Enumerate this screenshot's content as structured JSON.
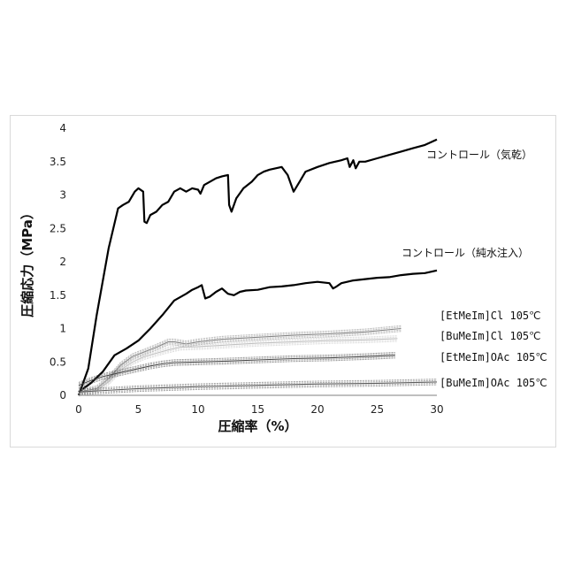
{
  "chart_data": {
    "type": "line",
    "xlabel": "圧縮率（%）",
    "ylabel": "圧縮応力（MPa）",
    "xlim": [
      0,
      30
    ],
    "ylim": [
      0,
      4
    ],
    "xticks": [
      "0",
      "5",
      "10",
      "15",
      "20",
      "25",
      "30"
    ],
    "yticks": [
      "0",
      "0.5",
      "1",
      "1.5",
      "2",
      "2.5",
      "3",
      "3.5",
      "4"
    ],
    "grid": false,
    "series": [
      {
        "name": "コントロール（気乾）",
        "color": "#000000",
        "style": "bold",
        "x": [
          0,
          0.8,
          1.5,
          2.5,
          3.3,
          3.7,
          4.2,
          4.7,
          5.0,
          5.4,
          5.5,
          5.7,
          6.0,
          6.5,
          7.0,
          7.5,
          8.0,
          8.5,
          9.0,
          9.5,
          10.0,
          10.2,
          10.5,
          11.0,
          11.5,
          12.0,
          12.5,
          12.6,
          12.8,
          13.2,
          13.8,
          14.5,
          15.0,
          15.5,
          16.0,
          16.5,
          17.0,
          17.5,
          18.0,
          18.5,
          19.0,
          20.0,
          21.0,
          22.0,
          22.5,
          22.7,
          23.0,
          23.2,
          23.5,
          24.0,
          25.0,
          26.0,
          27.0,
          28.0,
          29.0,
          30.0
        ],
        "y": [
          0.0,
          0.4,
          1.2,
          2.2,
          2.8,
          2.85,
          2.9,
          3.05,
          3.1,
          3.05,
          2.6,
          2.58,
          2.7,
          2.75,
          2.85,
          2.9,
          3.05,
          3.1,
          3.05,
          3.1,
          3.08,
          3.02,
          3.15,
          3.2,
          3.25,
          3.28,
          3.3,
          2.85,
          2.75,
          2.95,
          3.1,
          3.2,
          3.3,
          3.35,
          3.38,
          3.4,
          3.42,
          3.3,
          3.05,
          3.2,
          3.35,
          3.42,
          3.48,
          3.52,
          3.55,
          3.42,
          3.52,
          3.4,
          3.5,
          3.5,
          3.55,
          3.6,
          3.65,
          3.7,
          3.75,
          3.83
        ]
      },
      {
        "name": "コントロール（純水注入）",
        "color": "#000000",
        "style": "bold",
        "x": [
          0,
          1.0,
          2.0,
          3.0,
          4.0,
          5.0,
          6.0,
          7.0,
          8.0,
          9.0,
          9.5,
          10.0,
          10.3,
          10.6,
          11.0,
          11.5,
          12.0,
          12.5,
          13.0,
          13.5,
          14.0,
          15.0,
          16.0,
          17.0,
          18.0,
          19.0,
          20.0,
          21.0,
          21.3,
          21.6,
          22.0,
          23.0,
          24.0,
          25.0,
          26.0,
          27.0,
          28.0,
          29.0,
          30.0
        ],
        "y": [
          0.05,
          0.18,
          0.35,
          0.6,
          0.7,
          0.82,
          1.0,
          1.2,
          1.42,
          1.52,
          1.58,
          1.62,
          1.65,
          1.45,
          1.48,
          1.55,
          1.6,
          1.52,
          1.5,
          1.55,
          1.57,
          1.58,
          1.62,
          1.63,
          1.65,
          1.68,
          1.7,
          1.68,
          1.6,
          1.63,
          1.68,
          1.72,
          1.74,
          1.76,
          1.77,
          1.8,
          1.82,
          1.83,
          1.87
        ]
      },
      {
        "name": "[EtMeIm]Cl 105℃",
        "color": "#7f7f7f",
        "style": "band",
        "x": [
          0,
          1.5,
          2.5,
          3.5,
          4.5,
          5.5,
          6.5,
          7.5,
          8.0,
          9.0,
          10.0,
          12.0,
          15.0,
          18.0,
          21.0,
          24.0,
          27.0
        ],
        "y": [
          0.05,
          0.1,
          0.25,
          0.45,
          0.58,
          0.65,
          0.72,
          0.8,
          0.8,
          0.77,
          0.8,
          0.84,
          0.87,
          0.9,
          0.92,
          0.95,
          1.0
        ]
      },
      {
        "name": "[BuMeIm]Cl 105℃",
        "color": "#bfbfbf",
        "style": "band",
        "x": [
          0,
          1.5,
          2.5,
          3.5,
          4.5,
          5.5,
          6.5,
          7.5,
          8.5,
          10.0,
          12.0,
          15.0,
          18.0,
          21.0,
          24.0,
          26.7
        ],
        "y": [
          0.03,
          0.08,
          0.2,
          0.38,
          0.5,
          0.58,
          0.63,
          0.68,
          0.72,
          0.73,
          0.75,
          0.78,
          0.8,
          0.82,
          0.83,
          0.85
        ]
      },
      {
        "name": "[EtMeIm]OAc 105℃",
        "color": "#404040",
        "style": "band",
        "x": [
          0,
          1.0,
          2.0,
          3.0,
          4.0,
          5.0,
          6.0,
          7.0,
          8.0,
          10.0,
          12.0,
          15.0,
          18.0,
          21.0,
          24.0,
          26.5
        ],
        "y": [
          0.15,
          0.22,
          0.28,
          0.32,
          0.36,
          0.4,
          0.44,
          0.47,
          0.49,
          0.5,
          0.51,
          0.53,
          0.55,
          0.56,
          0.58,
          0.6
        ]
      },
      {
        "name": "[BuMeIm]OAc 105℃",
        "color": "#555555",
        "style": "band",
        "x": [
          0,
          5.0,
          10.0,
          15.0,
          20.0,
          25.0,
          30.0
        ],
        "y": [
          0.05,
          0.1,
          0.13,
          0.15,
          0.17,
          0.18,
          0.2
        ]
      }
    ],
    "legend_placement": "right, beside lines"
  }
}
